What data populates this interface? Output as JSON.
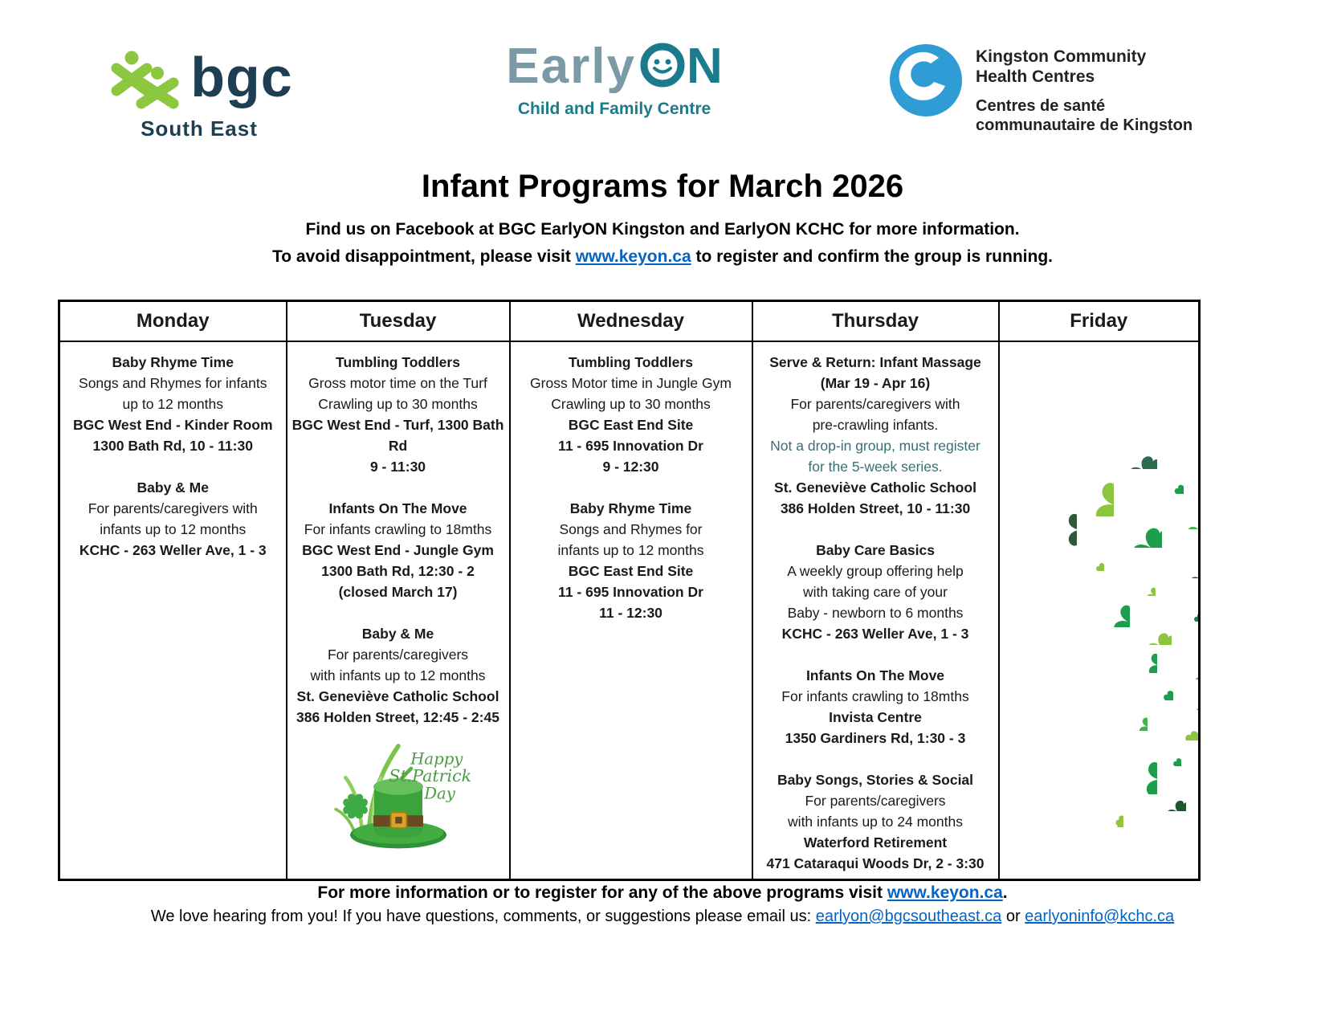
{
  "logos": {
    "bgc": {
      "word": "bgc",
      "subtitle": "South East"
    },
    "earlyon": {
      "word_gray": "Early",
      "word_teal_n": "N",
      "subtitle": "Child and Family Centre"
    },
    "kchc": {
      "en1": "Kingston Community",
      "en2": "Health Centres",
      "fr1": "Centres de santé",
      "fr2": "communautaire de Kingston"
    }
  },
  "header": {
    "title": "Infant Programs for March 2026",
    "subtitle1": "Find us on Facebook at BGC EarlyON Kingston and EarlyON KCHC for more information.",
    "subtitle2_pre": "To avoid disappointment, please visit ",
    "subtitle2_link": "www.keyon.ca",
    "subtitle2_post": " to register and confirm the group is running."
  },
  "table": {
    "columns": [
      {
        "day": "Monday",
        "blocks": [
          {
            "lines": [
              {
                "t": "Baby Rhyme Time",
                "b": true
              },
              {
                "t": "Songs and Rhymes for infants",
                "b": false
              },
              {
                "t": "up to 12 months",
                "b": false
              },
              {
                "t": "BGC West End - Kinder Room",
                "b": true
              },
              {
                "t": "1300 Bath Rd, 10 - 11:30",
                "b": true
              }
            ]
          },
          {
            "lines": [
              {
                "t": "Baby & Me",
                "b": true
              },
              {
                "t": "For parents/caregivers with",
                "b": false
              },
              {
                "t": "infants up to 12 months",
                "b": false
              },
              {
                "t": "KCHC - 263 Weller Ave, 1 - 3",
                "b": true
              }
            ]
          }
        ]
      },
      {
        "day": "Tuesday",
        "blocks": [
          {
            "lines": [
              {
                "t": "Tumbling Toddlers",
                "b": true
              },
              {
                "t": "Gross motor time on the Turf",
                "b": false
              },
              {
                "t": "Crawling up to 30 months",
                "b": false
              },
              {
                "t": "BGC West End - Turf, 1300 Bath Rd",
                "b": true
              },
              {
                "t": "9 - 11:30",
                "b": true
              }
            ]
          },
          {
            "lines": [
              {
                "t": "Infants On The Move",
                "b": true
              },
              {
                "t": "For infants crawling to 18mths",
                "b": false
              },
              {
                "t": "BGC West End - Jungle Gym",
                "b": true
              },
              {
                "t": "1300 Bath Rd, 12:30 - 2",
                "b": true
              },
              {
                "t": "(closed March 17)",
                "b": true
              }
            ]
          },
          {
            "lines": [
              {
                "t": "Baby & Me",
                "b": true
              },
              {
                "t": "For parents/caregivers",
                "b": false
              },
              {
                "t": "with infants up to 12 months",
                "b": false
              },
              {
                "t": "St. Geneviève Catholic School",
                "b": true
              },
              {
                "t": "386 Holden Street, 12:45 - 2:45",
                "b": true
              }
            ]
          }
        ]
      },
      {
        "day": "Wednesday",
        "blocks": [
          {
            "lines": [
              {
                "t": "Tumbling Toddlers",
                "b": true
              },
              {
                "t": "Gross Motor time in Jungle Gym",
                "b": false
              },
              {
                "t": "Crawling up to 30 months",
                "b": false
              },
              {
                "t": "BGC East End Site",
                "b": true
              },
              {
                "t": "11 - 695 Innovation Dr",
                "b": true
              },
              {
                "t": "9 - 12:30",
                "b": true
              }
            ]
          },
          {
            "lines": [
              {
                "t": "Baby Rhyme Time",
                "b": true
              },
              {
                "t": "Songs and Rhymes for",
                "b": false
              },
              {
                "t": "infants up to 12 months",
                "b": false
              },
              {
                "t": "BGC East End Site",
                "b": true
              },
              {
                "t": "11 - 695 Innovation Dr",
                "b": true
              },
              {
                "t": "11 - 12:30",
                "b": true
              }
            ]
          }
        ]
      },
      {
        "day": "Thursday",
        "blocks": [
          {
            "lines": [
              {
                "t": "Serve & Return: Infant Massage",
                "b": true
              },
              {
                "t": "(Mar 19 - Apr 16)",
                "b": true
              },
              {
                "t": "For parents/caregivers with",
                "b": false
              },
              {
                "t": "pre-crawling infants.",
                "b": false
              },
              {
                "t": "Not a drop-in group, must register",
                "b": false,
                "c": "accent"
              },
              {
                "t": "for the 5-week series.",
                "b": false,
                "c": "accent"
              },
              {
                "t": "St. Geneviève Catholic School",
                "b": true
              },
              {
                "t": "386 Holden Street, 10 - 11:30",
                "b": true
              }
            ]
          },
          {
            "lines": [
              {
                "t": "Baby Care Basics",
                "b": true
              },
              {
                "t": "A weekly group offering help",
                "b": false
              },
              {
                "t": "with taking care of your",
                "b": false
              },
              {
                "t": "Baby - newborn to 6 months",
                "b": false
              },
              {
                "t": "KCHC - 263 Weller Ave, 1 - 3",
                "b": true
              }
            ]
          },
          {
            "lines": [
              {
                "t": "Infants On The Move",
                "b": true
              },
              {
                "t": "For infants crawling to 18mths",
                "b": false
              },
              {
                "t": "Invista Centre",
                "b": true
              },
              {
                "t": "1350 Gardiners Rd, 1:30 - 3",
                "b": true
              }
            ]
          },
          {
            "lines": [
              {
                "t": "Baby Songs, Stories & Social",
                "b": true
              },
              {
                "t": "For parents/caregivers",
                "b": false
              },
              {
                "t": "with infants up to 24 months",
                "b": false
              },
              {
                "t": "Waterford Retirement",
                "b": true
              },
              {
                "t": "471 Cataraqui Woods Dr, 2 - 3:30",
                "b": true
              }
            ]
          }
        ]
      },
      {
        "day": "Friday",
        "blocks": []
      }
    ]
  },
  "stpatricks": {
    "caption_line1": "Happy",
    "caption_line2": "St.Patrick's",
    "caption_line3": "Day"
  },
  "footer": {
    "line1_pre": "For more information or to register for any of the above programs visit ",
    "line1_link": "www.keyon.ca",
    "line1_post": ".",
    "line2_pre": "We love hearing from you! If you have questions, comments, or suggestions please email us: ",
    "line2_link1": "earlyon@bgcsoutheast.ca",
    "line2_mid": " or ",
    "line2_link2": "earlyoninfo@kchc.ca"
  },
  "colors": {
    "link_blue": "#0563C1",
    "accent_teal": "#3A6E74",
    "bgc_green": "#8DC63F",
    "bgc_navy": "#1D3E53",
    "earlyon_gray": "#7C99A6",
    "earlyon_teal": "#1B7B8C",
    "kchc_blue": "#2F9CD6",
    "shamrock_greens": [
      "#8CC63E",
      "#3BB54A",
      "#1E9E4C",
      "#2D6A4F",
      "#1E5631"
    ]
  }
}
